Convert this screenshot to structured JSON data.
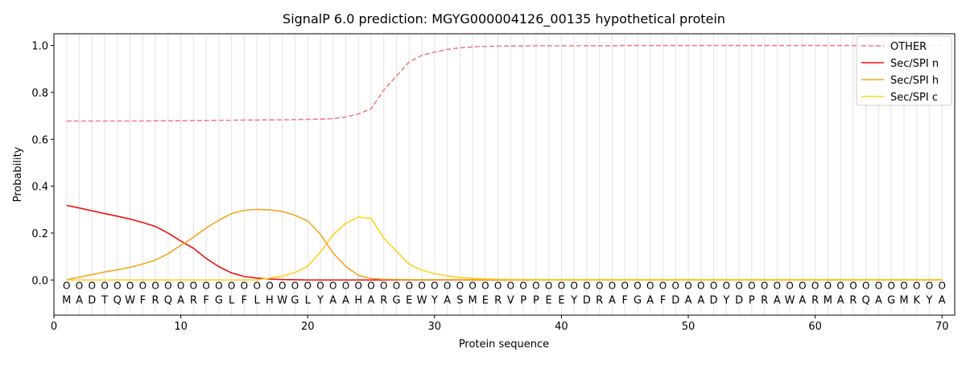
{
  "chart_data": {
    "type": "line",
    "title": "SignalP 6.0 prediction: MGYG000004126_00135 hypothetical protein",
    "xlabel": "Protein sequence",
    "ylabel": "Probability",
    "xlim": [
      0,
      71
    ],
    "ylim": [
      -0.15,
      1.05
    ],
    "x_ticks": [
      0,
      10,
      20,
      30,
      40,
      50,
      60,
      70
    ],
    "y_ticks": [
      0.0,
      0.2,
      0.4,
      0.6,
      0.8,
      1.0
    ],
    "x_tick_labels": [
      "0",
      "10",
      "20",
      "30",
      "40",
      "50",
      "60",
      "70"
    ],
    "y_tick_labels": [
      "0.0",
      "0.2",
      "0.4",
      "0.6",
      "0.8",
      "1.0"
    ],
    "grid": "vertical lines at each residue",
    "legend_position": "top-right",
    "sequence": "MADTQWFRQARFGLFLHWGLYAAHARGEWYASMERVPPEEYDRAFGAFDAADYDPRAWARMARQAGMKYA",
    "residue_state_labels": "OOOOOOOOOOOOOOOOOOOOOOOOOOOOOOOOOOOOOOOOOOOOOOOOOOOOOOOOOOOOOOOOOOOOOO",
    "x": [
      1,
      2,
      3,
      4,
      5,
      6,
      7,
      8,
      9,
      10,
      11,
      12,
      13,
      14,
      15,
      16,
      17,
      18,
      19,
      20,
      21,
      22,
      23,
      24,
      25,
      26,
      27,
      28,
      29,
      30,
      31,
      32,
      33,
      34,
      35,
      36,
      37,
      38,
      39,
      40,
      41,
      42,
      43,
      44,
      45,
      46,
      47,
      48,
      49,
      50,
      51,
      52,
      53,
      54,
      55,
      56,
      57,
      58,
      59,
      60,
      61,
      62,
      63,
      64,
      65,
      66,
      67,
      68,
      69,
      70
    ],
    "series": [
      {
        "name": "OTHER",
        "color": "#f08080",
        "dash": "dashed",
        "values": [
          0.678,
          0.678,
          0.678,
          0.678,
          0.678,
          0.678,
          0.678,
          0.679,
          0.679,
          0.679,
          0.68,
          0.68,
          0.681,
          0.681,
          0.682,
          0.682,
          0.683,
          0.683,
          0.684,
          0.685,
          0.686,
          0.688,
          0.695,
          0.708,
          0.73,
          0.81,
          0.87,
          0.93,
          0.958,
          0.972,
          0.983,
          0.99,
          0.994,
          0.996,
          0.997,
          0.998,
          0.998,
          0.999,
          0.999,
          0.999,
          0.999,
          0.999,
          0.999,
          0.999,
          1.0,
          1.0,
          1.0,
          1.0,
          1.0,
          1.0,
          1.0,
          1.0,
          1.0,
          1.0,
          1.0,
          1.0,
          1.0,
          1.0,
          1.0,
          1.0,
          1.0,
          1.0,
          1.0,
          1.0,
          1.0,
          1.0,
          1.0,
          1.0,
          1.0,
          1.0
        ]
      },
      {
        "name": "Sec/SPI n",
        "color": "#ee1111",
        "dash": "solid",
        "values": [
          0.318,
          0.307,
          0.295,
          0.283,
          0.272,
          0.26,
          0.245,
          0.228,
          0.2,
          0.166,
          0.135,
          0.092,
          0.057,
          0.03,
          0.015,
          0.008,
          0.004,
          0.002,
          0.001,
          0.0,
          0.0,
          0.0,
          0.0,
          0.0,
          0.0,
          0.0,
          0.0,
          0.0,
          0.0,
          0.0,
          0.0,
          0.0,
          0.0,
          0.0,
          0.0,
          0.0,
          0.0,
          0.0,
          0.0,
          0.0,
          0.0,
          0.0,
          0.0,
          0.0,
          0.0,
          0.0,
          0.0,
          0.0,
          0.0,
          0.0,
          0.0,
          0.0,
          0.0,
          0.0,
          0.0,
          0.0,
          0.0,
          0.0,
          0.0,
          0.0,
          0.0,
          0.0,
          0.0,
          0.0,
          0.0,
          0.0,
          0.0,
          0.0,
          0.0,
          0.0
        ]
      },
      {
        "name": "Sec/SPI h",
        "color": "#f5a623",
        "dash": "solid",
        "values": [
          0.001,
          0.012,
          0.023,
          0.034,
          0.043,
          0.054,
          0.068,
          0.085,
          0.112,
          0.148,
          0.182,
          0.222,
          0.255,
          0.283,
          0.297,
          0.301,
          0.299,
          0.292,
          0.276,
          0.252,
          0.195,
          0.115,
          0.058,
          0.02,
          0.006,
          0.003,
          0.002,
          0.001,
          0.001,
          0.001,
          0.001,
          0.001,
          0.001,
          0.001,
          0.001,
          0.001,
          0.001,
          0.001,
          0.001,
          0.001,
          0.001,
          0.001,
          0.001,
          0.001,
          0.001,
          0.001,
          0.001,
          0.001,
          0.001,
          0.001,
          0.001,
          0.001,
          0.001,
          0.001,
          0.001,
          0.001,
          0.001,
          0.001,
          0.001,
          0.001,
          0.001,
          0.001,
          0.001,
          0.001,
          0.001,
          0.001,
          0.001,
          0.001,
          0.001,
          0.001
        ]
      },
      {
        "name": "Sec/SPI c",
        "color": "#ffd21f",
        "dash": "solid",
        "values": [
          0.0,
          0.0,
          0.0,
          0.0,
          0.0,
          0.0,
          0.0,
          0.0,
          0.0,
          0.0,
          0.0,
          0.0,
          0.0,
          0.0,
          0.0,
          0.0,
          0.008,
          0.016,
          0.032,
          0.058,
          0.118,
          0.192,
          0.242,
          0.268,
          0.262,
          0.178,
          0.122,
          0.067,
          0.042,
          0.027,
          0.017,
          0.011,
          0.007,
          0.005,
          0.003,
          0.002,
          0.002,
          0.001,
          0.001,
          0.001,
          0.001,
          0.001,
          0.001,
          0.001,
          0.001,
          0.001,
          0.001,
          0.001,
          0.001,
          0.001,
          0.001,
          0.001,
          0.001,
          0.001,
          0.001,
          0.001,
          0.001,
          0.001,
          0.001,
          0.001,
          0.001,
          0.001,
          0.001,
          0.001,
          0.001,
          0.001,
          0.001,
          0.001,
          0.001,
          0.001
        ]
      }
    ]
  }
}
